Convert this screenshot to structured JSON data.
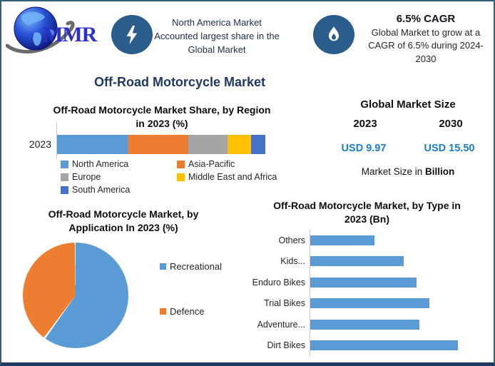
{
  "header": {
    "logo": {
      "text": "MMR"
    },
    "highlight1": {
      "lines": [
        "North America Market",
        "Accounted largest share in the",
        "Global Market"
      ]
    },
    "highlight2": {
      "heading": "6.5% CAGR",
      "lines": [
        "Global Market to grow at a",
        "CAGR of 6.5% during 2024-",
        "2030"
      ]
    }
  },
  "main_title": "Off-Road Motorcycle Market",
  "market_size": {
    "title": "Global Market Size",
    "years": [
      "2023",
      "2030"
    ],
    "values": [
      "USD 9.97",
      "USD 15.50"
    ],
    "caption_prefix": "Market Size in ",
    "caption_bold": "Billion",
    "value_color": "#1b7ec2"
  },
  "colors": {
    "brand_navy": "#1f3864",
    "badge_blue": "#2a5d8c",
    "border_teal": "#2e607c",
    "chart_blue": "#5B9BD5",
    "chart_orange": "#ED7D31",
    "chart_gray": "#A5A5A5",
    "chart_yellow": "#FFC000",
    "chart_darkblue": "#4472C4"
  },
  "chart_data": [
    {
      "type": "bar",
      "variant": "stacked-horizontal",
      "title": "Off-Road Motorcycle Market Share, by Region in 2023 (%)",
      "title_lines": [
        "Off-Road Motorcycle Market Share, by Region",
        "in 2023 (%)"
      ],
      "categories": [
        "2023"
      ],
      "series": [
        {
          "name": "North America",
          "color": "#5B9BD5",
          "values": [
            34
          ]
        },
        {
          "name": "Asia-Pacific",
          "color": "#ED7D31",
          "values": [
            29
          ]
        },
        {
          "name": "Europe",
          "color": "#A5A5A5",
          "values": [
            19
          ]
        },
        {
          "name": "Middle East and Africa",
          "color": "#FFC000",
          "values": [
            11
          ]
        },
        {
          "name": "South America",
          "color": "#4472C4",
          "values": [
            7
          ]
        }
      ],
      "unit": "%",
      "note": "segment shares estimated from bar widths",
      "legend_position": "bottom",
      "grid": false
    },
    {
      "type": "pie",
      "title": "Off-Road Motorcycle Market, by Application In 2023 (%)",
      "title_lines": [
        "Off-Road Motorcycle Market, by",
        "Application In 2023 (%)"
      ],
      "labels": [
        "Recreational",
        "Defence"
      ],
      "values": [
        60,
        40
      ],
      "colors": [
        "#5B9BD5",
        "#ED7D31"
      ],
      "start_angle_deg": 0,
      "clockwise": true,
      "unit": "%",
      "note": "slice shares estimated from angles",
      "legend_position": "right"
    },
    {
      "type": "bar",
      "variant": "horizontal",
      "title": "Off-Road Motorcycle Market, by Type in 2023 (Bn)",
      "title_lines": [
        "Off-Road Motorcycle Market, by Type in",
        "2023 (Bn)"
      ],
      "categories": [
        "Others",
        "Kids...",
        "Enduro Bikes",
        "Trial Bikes",
        "Adventure...",
        "Dirt Bikes"
      ],
      "values": [
        1.0,
        1.45,
        1.65,
        1.85,
        1.7,
        2.3
      ],
      "xlim": [
        0,
        2.5
      ],
      "bar_color": "#5B9BD5",
      "unit": "Bn",
      "note": "values estimated from bar lengths",
      "grid": false
    }
  ]
}
